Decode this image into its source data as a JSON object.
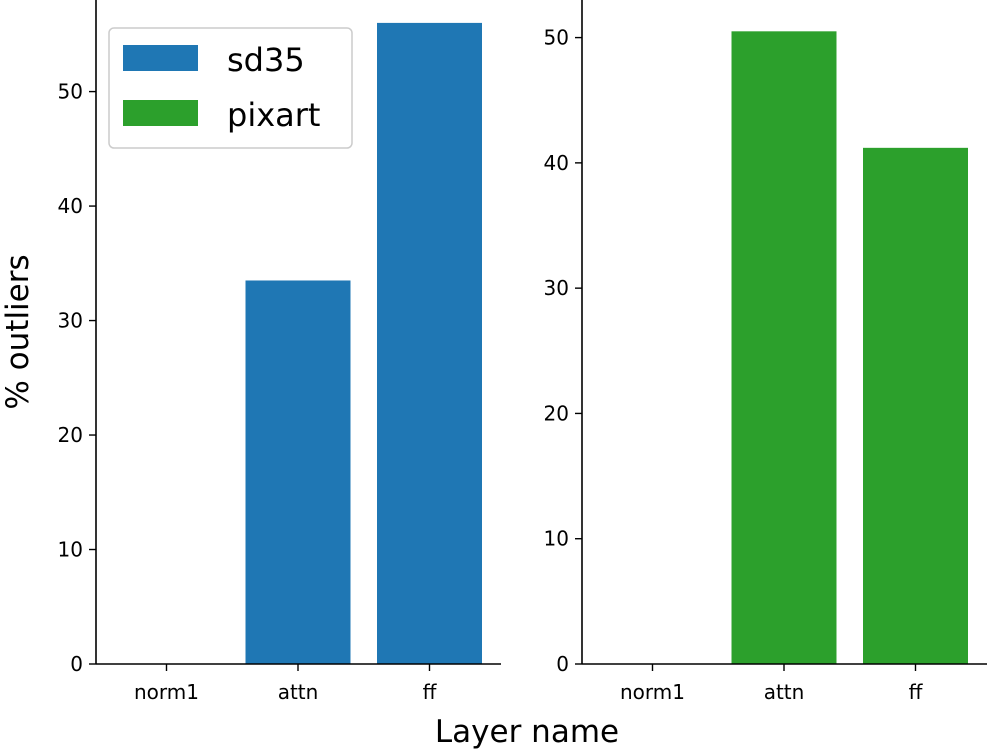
{
  "chart_data": [
    {
      "type": "bar",
      "categories": [
        "norm1",
        "attn",
        "ff"
      ],
      "series": [
        {
          "name": "sd35",
          "color": "#1f77b4",
          "values": [
            0,
            33.5,
            56.0
          ]
        }
      ],
      "ylabel": "% outliers",
      "ylim": [
        0,
        58
      ],
      "yticks": [
        0,
        10,
        20,
        30,
        40,
        50
      ],
      "grid": false,
      "legend": "top-left"
    },
    {
      "type": "bar",
      "categories": [
        "norm1",
        "attn",
        "ff"
      ],
      "series": [
        {
          "name": "pixart",
          "color": "#2ca02c",
          "values": [
            0,
            50.5,
            41.2
          ]
        }
      ],
      "ylim": [
        0,
        53
      ],
      "yticks": [
        0,
        10,
        20,
        30,
        40,
        50
      ],
      "grid": false
    }
  ],
  "shared": {
    "xlabel": "Layer name"
  },
  "legend": {
    "entries": [
      {
        "label": "sd35",
        "color": "#1f77b4"
      },
      {
        "label": "pixart",
        "color": "#2ca02c"
      }
    ]
  }
}
